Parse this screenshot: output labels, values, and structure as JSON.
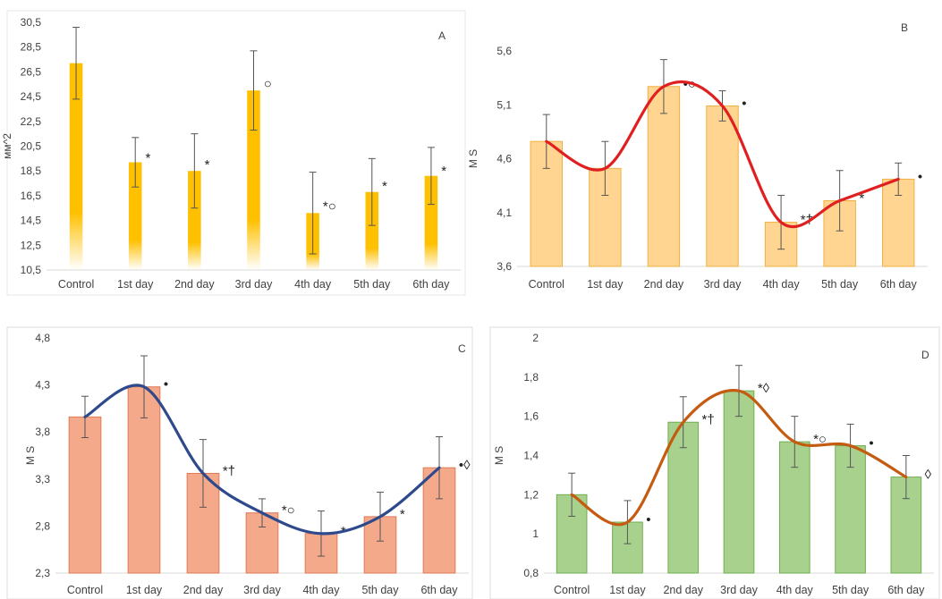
{
  "chart_data": [
    {
      "type": "bar",
      "panel": "A",
      "ylabel": "мм^2",
      "categories": [
        "Control",
        "1st day",
        "2nd day",
        "3rd day",
        "4th day",
        "5th day",
        "6th day"
      ],
      "values": [
        27.2,
        19.2,
        18.5,
        25.0,
        15.1,
        16.8,
        18.1
      ],
      "error": [
        2.9,
        2.0,
        3.0,
        3.2,
        3.3,
        2.7,
        2.3
      ],
      "annotations": [
        "",
        "*",
        "*",
        "○",
        "*○",
        "*",
        "*"
      ],
      "yticks": [
        "10,5",
        "12,5",
        "14,5",
        "16,5",
        "18,5",
        "20,5",
        "22,5",
        "24,5",
        "26,5",
        "28,5",
        "30,5"
      ],
      "ylim": [
        10.5,
        30.5
      ],
      "bar_color": "#FFC000",
      "grid": false
    },
    {
      "type": "bar",
      "panel": "B",
      "ylabel": "M S",
      "categories": [
        "Control",
        "1st day",
        "2nd day",
        "3rd day",
        "4th day",
        "5th day",
        "6th day"
      ],
      "values": [
        4.76,
        4.51,
        5.27,
        5.09,
        4.01,
        4.21,
        4.41
      ],
      "error": [
        0.25,
        0.25,
        0.25,
        0.14,
        0.25,
        0.28,
        0.15
      ],
      "trend_line": [
        4.76,
        4.51,
        5.27,
        5.09,
        4.01,
        4.21,
        4.41
      ],
      "annotations": [
        "",
        "",
        "•○",
        "•",
        "*†",
        "*",
        "•"
      ],
      "yticks": [
        "3,6",
        "4,1",
        "4,6",
        "5,1",
        "5,6"
      ],
      "ylim": [
        3.6,
        5.6
      ],
      "bar_color": "#FFD591",
      "line_color": "#E02020",
      "grid": false
    },
    {
      "type": "bar",
      "panel": "C",
      "ylabel": "M S",
      "categories": [
        "Control",
        "1st day",
        "2nd day",
        "3rd day",
        "4th day",
        "5th day",
        "6th day"
      ],
      "values": [
        3.96,
        4.28,
        3.36,
        2.94,
        2.72,
        2.9,
        3.42
      ],
      "error": [
        0.22,
        0.33,
        0.36,
        0.15,
        0.24,
        0.26,
        0.33
      ],
      "trend_line": [
        3.96,
        4.28,
        3.36,
        2.94,
        2.72,
        2.9,
        3.42
      ],
      "annotations": [
        "",
        "•",
        "*†",
        "*○",
        "*",
        "*",
        "•◊"
      ],
      "yticks": [
        "2,3",
        "2,8",
        "3,3",
        "3,8",
        "4,3",
        "4,8"
      ],
      "ylim": [
        2.3,
        4.8
      ],
      "bar_color": "#F4A98A",
      "line_color": "#2E4A8C",
      "grid": false
    },
    {
      "type": "bar",
      "panel": "D",
      "ylabel": "M S",
      "categories": [
        "Control",
        "1st day",
        "2nd day",
        "3rd day",
        "4th day",
        "5th day",
        "6th day"
      ],
      "values": [
        1.2,
        1.06,
        1.57,
        1.73,
        1.47,
        1.45,
        1.29
      ],
      "error": [
        0.11,
        0.11,
        0.13,
        0.13,
        0.13,
        0.11,
        0.11
      ],
      "trend_line": [
        1.2,
        1.06,
        1.57,
        1.73,
        1.47,
        1.45,
        1.29
      ],
      "annotations": [
        "",
        "•",
        "*†",
        "*◊",
        "*○",
        "•",
        "◊"
      ],
      "yticks": [
        "0,8",
        "1",
        "1,2",
        "1,4",
        "1,6",
        "1,8",
        "2"
      ],
      "ylim": [
        0.8,
        2.0
      ],
      "bar_color": "#A9D18E",
      "line_color": "#C55A11",
      "grid": false
    }
  ]
}
